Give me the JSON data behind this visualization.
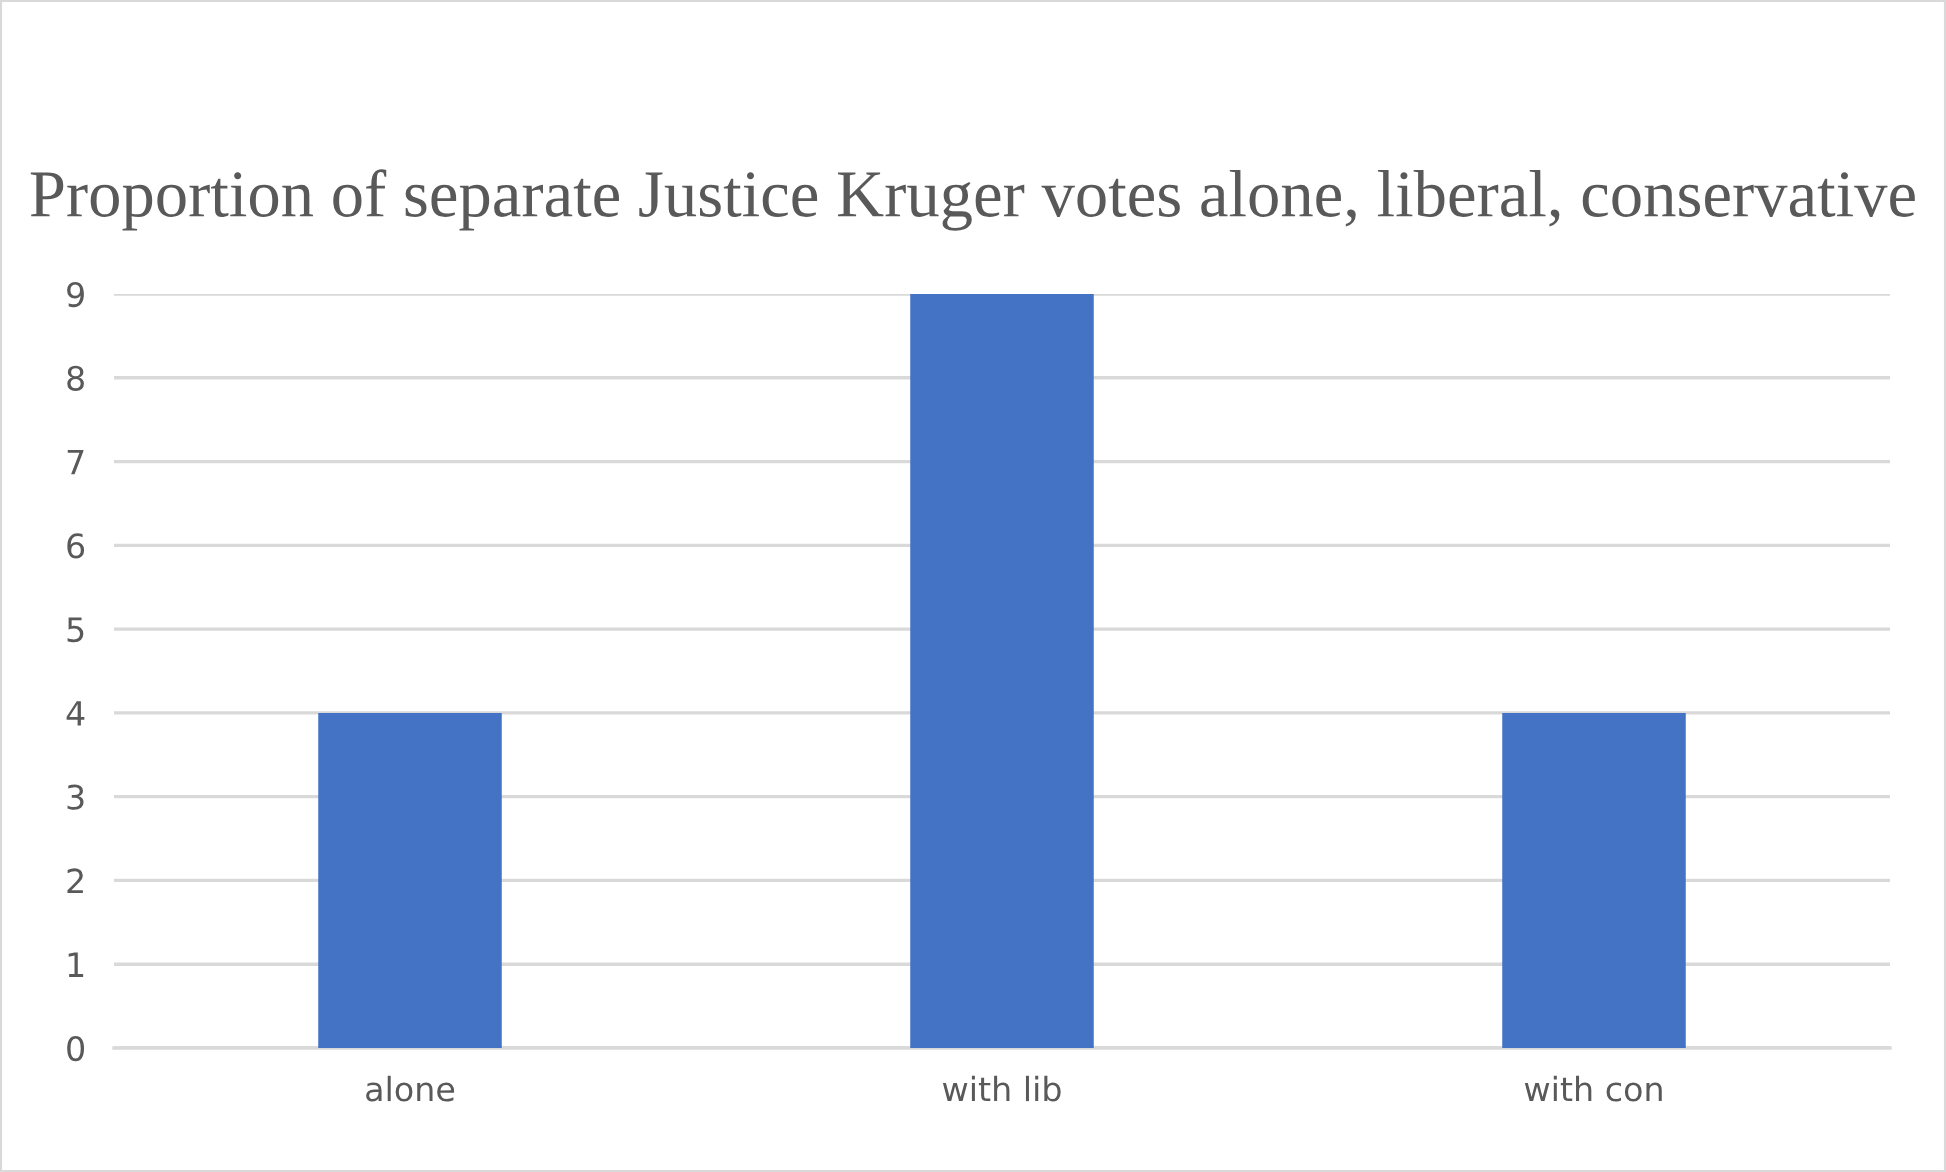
{
  "chart_data": {
    "type": "bar",
    "title": "Proportion of separate Justice Kruger votes alone, liberal, conservative",
    "categories": [
      "alone",
      "with lib",
      "with con"
    ],
    "values": [
      4,
      9,
      4
    ],
    "color": "#4472c4",
    "ylim": [
      0,
      9
    ],
    "yticks": [
      0,
      1,
      2,
      3,
      4,
      5,
      6,
      7,
      8,
      9
    ],
    "grid": "y"
  }
}
